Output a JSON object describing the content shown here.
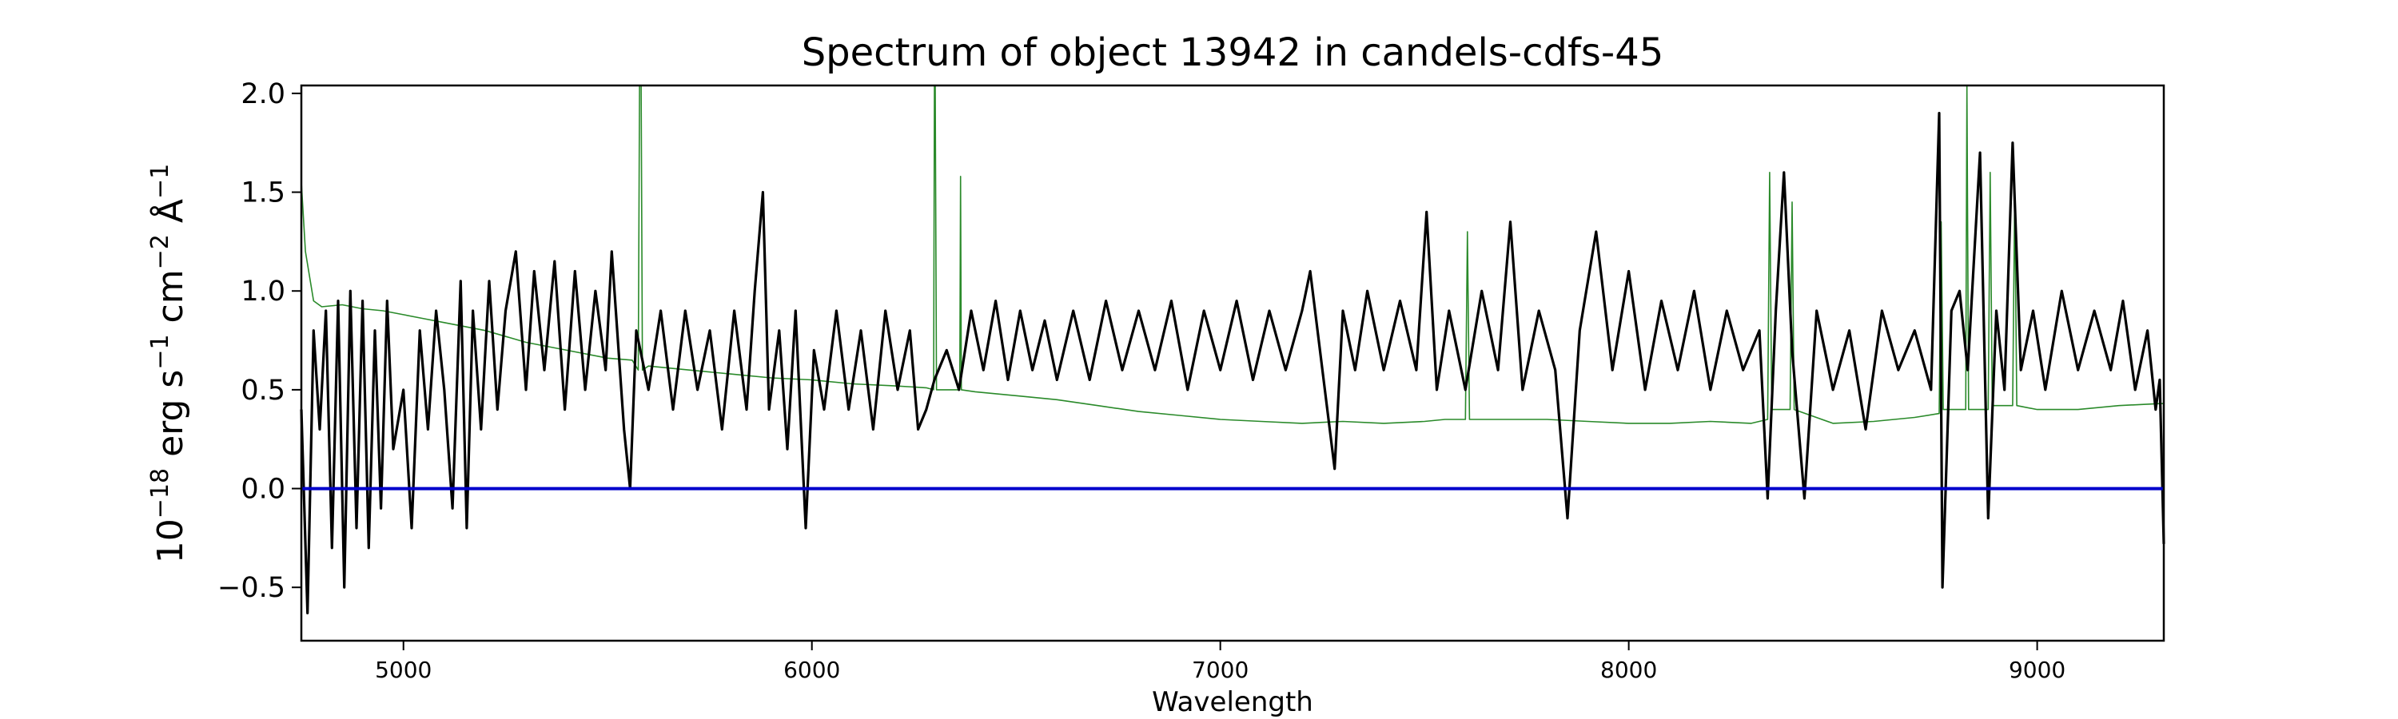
{
  "chart_data": {
    "type": "line",
    "title": "Spectrum of object 13942 in candels-cdfs-45",
    "xlabel": "Wavelength",
    "ylabel": {
      "prefix": "10",
      "prefix_exp": "−18",
      "unit1": "erg s",
      "unit1_exp": "−1",
      "unit2": "cm",
      "unit2_exp": "−2",
      "unit3": "Å",
      "unit3_exp": "−1"
    },
    "xlim": [
      4750,
      9310
    ],
    "ylim": [
      -0.77,
      2.04
    ],
    "xticks": [
      5000,
      6000,
      7000,
      8000,
      9000
    ],
    "xtick_labels": [
      "5000",
      "6000",
      "7000",
      "8000",
      "9000"
    ],
    "yticks": [
      -0.5,
      0.0,
      0.5,
      1.0,
      1.5,
      2.0
    ],
    "ytick_labels": [
      "−0.5",
      "0.0",
      "0.5",
      "1.0",
      "1.5",
      "2.0"
    ],
    "grid": false,
    "series": [
      {
        "role": "model",
        "color": "#2a8a2a",
        "points": [
          [
            4750,
            1.55
          ],
          [
            4760,
            1.2
          ],
          [
            4780,
            0.95
          ],
          [
            4800,
            0.92
          ],
          [
            4850,
            0.93
          ],
          [
            4900,
            0.91
          ],
          [
            4950,
            0.9
          ],
          [
            5000,
            0.88
          ],
          [
            5050,
            0.86
          ],
          [
            5100,
            0.84
          ],
          [
            5200,
            0.8
          ],
          [
            5300,
            0.74
          ],
          [
            5400,
            0.7
          ],
          [
            5500,
            0.66
          ],
          [
            5560,
            0.65
          ],
          [
            5575,
            0.6
          ],
          [
            5578,
            2.04
          ],
          [
            5582,
            2.04
          ],
          [
            5585,
            0.6
          ],
          [
            5600,
            0.62
          ],
          [
            5700,
            0.6
          ],
          [
            5800,
            0.58
          ],
          [
            5900,
            0.56
          ],
          [
            6000,
            0.55
          ],
          [
            6100,
            0.53
          ],
          [
            6200,
            0.52
          ],
          [
            6280,
            0.51
          ],
          [
            6298,
            0.5
          ],
          [
            6300,
            2.04
          ],
          [
            6302,
            2.04
          ],
          [
            6305,
            0.5
          ],
          [
            6350,
            0.5
          ],
          [
            6362,
            0.5
          ],
          [
            6364,
            1.58
          ],
          [
            6366,
            0.5
          ],
          [
            6400,
            0.49
          ],
          [
            6500,
            0.47
          ],
          [
            6600,
            0.45
          ],
          [
            6700,
            0.42
          ],
          [
            6800,
            0.39
          ],
          [
            6900,
            0.37
          ],
          [
            7000,
            0.35
          ],
          [
            7100,
            0.34
          ],
          [
            7200,
            0.33
          ],
          [
            7300,
            0.34
          ],
          [
            7400,
            0.33
          ],
          [
            7500,
            0.34
          ],
          [
            7550,
            0.35
          ],
          [
            7600,
            0.35
          ],
          [
            7605,
            1.3
          ],
          [
            7610,
            0.35
          ],
          [
            7700,
            0.35
          ],
          [
            7800,
            0.35
          ],
          [
            7900,
            0.34
          ],
          [
            8000,
            0.33
          ],
          [
            8100,
            0.33
          ],
          [
            8200,
            0.34
          ],
          [
            8300,
            0.33
          ],
          [
            8340,
            0.35
          ],
          [
            8345,
            1.6
          ],
          [
            8350,
            0.4
          ],
          [
            8395,
            0.4
          ],
          [
            8400,
            1.45
          ],
          [
            8405,
            0.4
          ],
          [
            8500,
            0.33
          ],
          [
            8600,
            0.34
          ],
          [
            8700,
            0.36
          ],
          [
            8760,
            0.38
          ],
          [
            8765,
            1.35
          ],
          [
            8770,
            0.4
          ],
          [
            8825,
            0.4
          ],
          [
            8828,
            2.04
          ],
          [
            8832,
            0.4
          ],
          [
            8880,
            0.4
          ],
          [
            8885,
            1.6
          ],
          [
            8890,
            0.42
          ],
          [
            8940,
            0.42
          ],
          [
            8945,
            1.5
          ],
          [
            8950,
            0.42
          ],
          [
            9000,
            0.4
          ],
          [
            9100,
            0.4
          ],
          [
            9200,
            0.42
          ],
          [
            9300,
            0.43
          ],
          [
            9310,
            0.43
          ]
        ]
      },
      {
        "role": "observed",
        "color": "#000000",
        "points": [
          [
            4750,
            0.4
          ],
          [
            4765,
            -0.63
          ],
          [
            4780,
            0.8
          ],
          [
            4795,
            0.3
          ],
          [
            4810,
            0.9
          ],
          [
            4825,
            -0.3
          ],
          [
            4840,
            0.95
          ],
          [
            4855,
            -0.5
          ],
          [
            4870,
            1.0
          ],
          [
            4885,
            -0.2
          ],
          [
            4900,
            0.95
          ],
          [
            4915,
            -0.3
          ],
          [
            4930,
            0.8
          ],
          [
            4945,
            -0.1
          ],
          [
            4960,
            0.95
          ],
          [
            4975,
            0.2
          ],
          [
            5000,
            0.5
          ],
          [
            5020,
            -0.2
          ],
          [
            5040,
            0.8
          ],
          [
            5060,
            0.3
          ],
          [
            5080,
            0.9
          ],
          [
            5100,
            0.5
          ],
          [
            5120,
            -0.1
          ],
          [
            5140,
            1.05
          ],
          [
            5155,
            -0.2
          ],
          [
            5170,
            0.9
          ],
          [
            5190,
            0.3
          ],
          [
            5210,
            1.05
          ],
          [
            5230,
            0.4
          ],
          [
            5250,
            0.9
          ],
          [
            5275,
            1.2
          ],
          [
            5300,
            0.5
          ],
          [
            5320,
            1.1
          ],
          [
            5345,
            0.6
          ],
          [
            5370,
            1.15
          ],
          [
            5395,
            0.4
          ],
          [
            5420,
            1.1
          ],
          [
            5445,
            0.5
          ],
          [
            5470,
            1.0
          ],
          [
            5495,
            0.6
          ],
          [
            5510,
            1.2
          ],
          [
            5540,
            0.3
          ],
          [
            5555,
            0.0
          ],
          [
            5570,
            0.8
          ],
          [
            5600,
            0.5
          ],
          [
            5630,
            0.9
          ],
          [
            5660,
            0.4
          ],
          [
            5690,
            0.9
          ],
          [
            5720,
            0.5
          ],
          [
            5750,
            0.8
          ],
          [
            5780,
            0.3
          ],
          [
            5810,
            0.9
          ],
          [
            5840,
            0.4
          ],
          [
            5860,
            1.0
          ],
          [
            5880,
            1.5
          ],
          [
            5895,
            0.4
          ],
          [
            5920,
            0.8
          ],
          [
            5940,
            0.2
          ],
          [
            5960,
            0.9
          ],
          [
            5985,
            -0.2
          ],
          [
            6005,
            0.7
          ],
          [
            6030,
            0.4
          ],
          [
            6060,
            0.9
          ],
          [
            6090,
            0.4
          ],
          [
            6120,
            0.8
          ],
          [
            6150,
            0.3
          ],
          [
            6180,
            0.9
          ],
          [
            6210,
            0.5
          ],
          [
            6240,
            0.8
          ],
          [
            6260,
            0.3
          ],
          [
            6280,
            0.4
          ],
          [
            6300,
            0.55
          ],
          [
            6330,
            0.7
          ],
          [
            6360,
            0.5
          ],
          [
            6390,
            0.9
          ],
          [
            6420,
            0.6
          ],
          [
            6450,
            0.95
          ],
          [
            6480,
            0.55
          ],
          [
            6510,
            0.9
          ],
          [
            6540,
            0.6
          ],
          [
            6570,
            0.85
          ],
          [
            6600,
            0.55
          ],
          [
            6640,
            0.9
          ],
          [
            6680,
            0.55
          ],
          [
            6720,
            0.95
          ],
          [
            6760,
            0.6
          ],
          [
            6800,
            0.9
          ],
          [
            6840,
            0.6
          ],
          [
            6880,
            0.95
          ],
          [
            6920,
            0.5
          ],
          [
            6960,
            0.9
          ],
          [
            7000,
            0.6
          ],
          [
            7040,
            0.95
          ],
          [
            7080,
            0.55
          ],
          [
            7120,
            0.9
          ],
          [
            7160,
            0.6
          ],
          [
            7200,
            0.9
          ],
          [
            7220,
            1.1
          ],
          [
            7250,
            0.6
          ],
          [
            7280,
            0.1
          ],
          [
            7300,
            0.9
          ],
          [
            7330,
            0.6
          ],
          [
            7360,
            1.0
          ],
          [
            7400,
            0.6
          ],
          [
            7440,
            0.95
          ],
          [
            7480,
            0.6
          ],
          [
            7505,
            1.4
          ],
          [
            7530,
            0.5
          ],
          [
            7560,
            0.9
          ],
          [
            7600,
            0.5
          ],
          [
            7640,
            1.0
          ],
          [
            7680,
            0.6
          ],
          [
            7710,
            1.35
          ],
          [
            7740,
            0.5
          ],
          [
            7780,
            0.9
          ],
          [
            7820,
            0.6
          ],
          [
            7850,
            -0.15
          ],
          [
            7880,
            0.8
          ],
          [
            7920,
            1.3
          ],
          [
            7960,
            0.6
          ],
          [
            8000,
            1.1
          ],
          [
            8040,
            0.5
          ],
          [
            8080,
            0.95
          ],
          [
            8120,
            0.6
          ],
          [
            8160,
            1.0
          ],
          [
            8200,
            0.5
          ],
          [
            8240,
            0.9
          ],
          [
            8280,
            0.6
          ],
          [
            8320,
            0.8
          ],
          [
            8340,
            -0.05
          ],
          [
            8360,
            0.9
          ],
          [
            8380,
            1.6
          ],
          [
            8400,
            0.7
          ],
          [
            8430,
            -0.05
          ],
          [
            8460,
            0.9
          ],
          [
            8500,
            0.5
          ],
          [
            8540,
            0.8
          ],
          [
            8580,
            0.3
          ],
          [
            8620,
            0.9
          ],
          [
            8660,
            0.6
          ],
          [
            8700,
            0.8
          ],
          [
            8740,
            0.5
          ],
          [
            8760,
            1.9
          ],
          [
            8768,
            -0.5
          ],
          [
            8790,
            0.9
          ],
          [
            8810,
            1.0
          ],
          [
            8830,
            0.6
          ],
          [
            8860,
            1.7
          ],
          [
            8880,
            -0.15
          ],
          [
            8900,
            0.9
          ],
          [
            8920,
            0.5
          ],
          [
            8940,
            1.75
          ],
          [
            8960,
            0.6
          ],
          [
            8990,
            0.9
          ],
          [
            9020,
            0.5
          ],
          [
            9060,
            1.0
          ],
          [
            9100,
            0.6
          ],
          [
            9140,
            0.9
          ],
          [
            9180,
            0.6
          ],
          [
            9210,
            0.95
          ],
          [
            9240,
            0.5
          ],
          [
            9270,
            0.8
          ],
          [
            9290,
            0.4
          ],
          [
            9300,
            0.55
          ],
          [
            9310,
            -0.28
          ]
        ]
      },
      {
        "role": "zero-line",
        "color": "#0000cc",
        "points": [
          [
            4750,
            0.0
          ],
          [
            9310,
            0.0
          ]
        ]
      }
    ]
  }
}
